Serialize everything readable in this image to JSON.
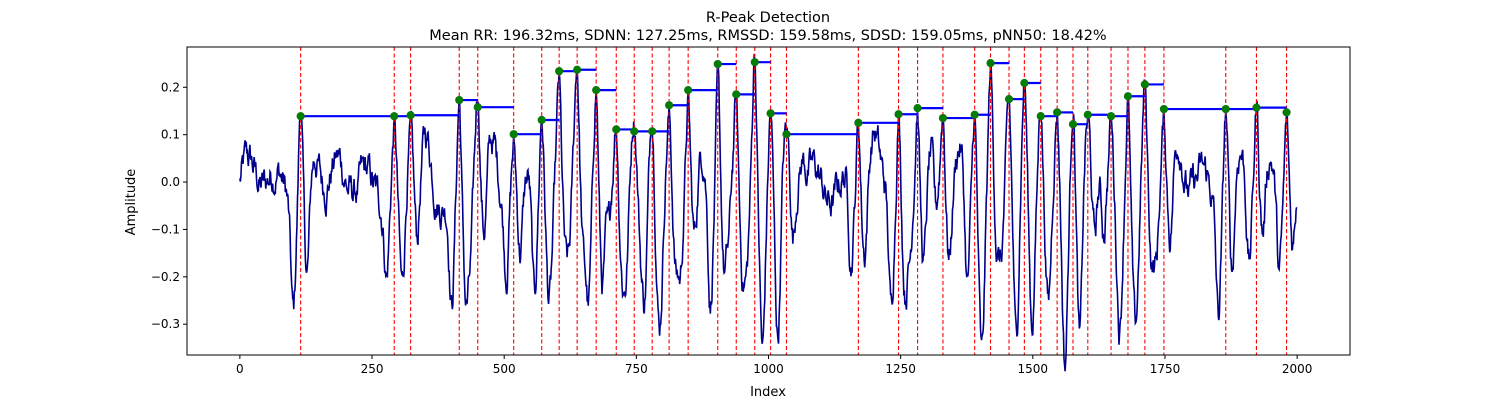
{
  "chart_data": {
    "type": "line",
    "title": "R-Peak Detection",
    "subtitle": "Mean RR: 196.32ms, SDNN: 127.25ms, RMSSD: 159.58ms, SDSD: 159.05ms, pNN50: 18.42%",
    "xlabel": "Index",
    "ylabel": "Amplitude",
    "xlim": [
      -100,
      2100
    ],
    "ylim": [
      -0.365,
      0.285
    ],
    "xticks": [
      0,
      250,
      500,
      750,
      1000,
      1250,
      1500,
      1750,
      2000
    ],
    "yticks": [
      -0.3,
      -0.2,
      -0.1,
      0.0,
      0.1,
      0.2
    ],
    "xtick_labels": [
      "0",
      "250",
      "500",
      "750",
      "1000",
      "1250",
      "1500",
      "1750",
      "2000"
    ],
    "ytick_labels": [
      "−0.3",
      "−0.2",
      "−0.1",
      "0.0",
      "0.1",
      "0.2"
    ],
    "grid": false,
    "colors": {
      "signal": "#00008b",
      "peak_marker": "#008000",
      "peak_line": "#ff0000",
      "rr_segment": "#0000ff"
    },
    "peaks": {
      "x": [
        115,
        292,
        323,
        415,
        450,
        518,
        571,
        604,
        638,
        674,
        712,
        746,
        780,
        812,
        848,
        904,
        939,
        974,
        1004,
        1034,
        1170,
        1246,
        1282,
        1330,
        1390,
        1420,
        1455,
        1484,
        1515,
        1546,
        1576,
        1604,
        1648,
        1680,
        1712,
        1748,
        1865,
        1923,
        1980
      ],
      "y": [
        0.139,
        0.139,
        0.141,
        0.173,
        0.158,
        0.101,
        0.131,
        0.234,
        0.237,
        0.194,
        0.111,
        0.107,
        0.107,
        0.162,
        0.194,
        0.249,
        0.185,
        0.253,
        0.145,
        0.101,
        0.125,
        0.143,
        0.156,
        0.135,
        0.142,
        0.251,
        0.175,
        0.209,
        0.139,
        0.147,
        0.122,
        0.142,
        0.139,
        0.181,
        0.206,
        0.154,
        0.154,
        0.157,
        0.147
      ]
    },
    "signal_x_range": [
      0,
      1999
    ]
  }
}
